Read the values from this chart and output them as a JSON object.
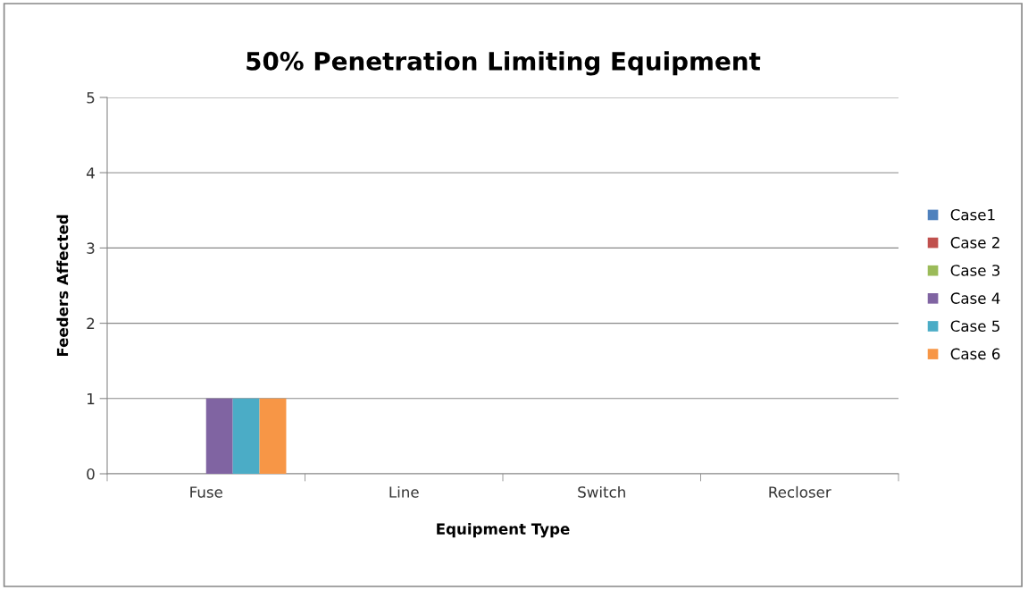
{
  "chart_data": {
    "type": "bar",
    "title": "50% Penetration Limiting Equipment",
    "xlabel": "Equipment Type",
    "ylabel": "Feeders Affected",
    "categories": [
      "Fuse",
      "Line",
      "Switch",
      "Recloser"
    ],
    "series": [
      {
        "name": "Case1",
        "color": "#4f81bd",
        "values": [
          0,
          0,
          0,
          0
        ]
      },
      {
        "name": "Case 2",
        "color": "#c0504d",
        "values": [
          0,
          0,
          0,
          0
        ]
      },
      {
        "name": "Case 3",
        "color": "#9bbb59",
        "values": [
          0,
          0,
          0,
          0
        ]
      },
      {
        "name": "Case 4",
        "color": "#8064a2",
        "values": [
          1,
          0,
          0,
          0
        ]
      },
      {
        "name": "Case 5",
        "color": "#4bacc6",
        "values": [
          1,
          0,
          0,
          0
        ]
      },
      {
        "name": "Case 6",
        "color": "#f79646",
        "values": [
          1,
          0,
          0,
          0
        ]
      }
    ],
    "ylim": [
      0,
      5
    ],
    "yticks": [
      0,
      1,
      2,
      3,
      4,
      5
    ],
    "grid": "y",
    "legend": "right"
  }
}
